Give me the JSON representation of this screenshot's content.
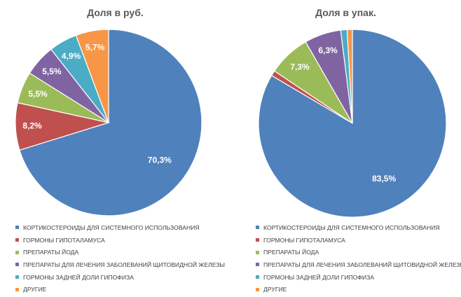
{
  "chart_data": [
    {
      "type": "pie",
      "title": "Доля в руб.",
      "categories": [
        "КОРТИКОСТЕРОИДЫ ДЛЯ СИСТЕМНОГО ИСПОЛЬЗОВАНИЯ",
        "ГОРМОНЫ ГИПОТАЛАМУСА",
        "ПРЕПАРАТЫ ЙОДА",
        "ПРЕПАРАТЫ ДЛЯ ЛЕЧЕНИЯ ЗАБОЛЕВАНИЙ ЩИТОВИДНОЙ ЖЕЛЕЗЫ",
        "ГОРМОНЫ ЗАДНЕЙ ДОЛИ ГИПОФИЗА",
        "ДРУГИЕ"
      ],
      "values": [
        70.3,
        8.2,
        5.5,
        5.5,
        4.9,
        5.7
      ],
      "data_labels": [
        "70,3%",
        "8,2%",
        "5,5%",
        "5,5%",
        "4,9%",
        "5,7%"
      ],
      "colors": [
        "#4f81bd",
        "#c0504d",
        "#9bbb59",
        "#8064a2",
        "#4bacc6",
        "#f79646"
      ],
      "legend_position": "bottom"
    },
    {
      "type": "pie",
      "title": "Доля в упак.",
      "categories": [
        "КОРТИКОСТЕРОИДЫ ДЛЯ СИСТЕМНОГО ИСПОЛЬЗОВАНИЯ",
        "ГОРМОНЫ ГИПОТАЛАМУСА",
        "ПРЕПАРАТЫ ЙОДА",
        "ПРЕПАРАТЫ ДЛЯ ЛЕЧЕНИЯ ЗАБОЛЕВАНИЙ ЩИТОВИДНОЙ ЖЕЛЕЗЫ",
        "ГОРМОНЫ ЗАДНЕЙ ДОЛИ ГИПОФИЗА",
        "ДРУГИЕ"
      ],
      "values": [
        83.5,
        0.9,
        7.3,
        6.3,
        1.1,
        0.9
      ],
      "data_labels": [
        "83,5%",
        "",
        "7,3%",
        "6,3%",
        "",
        ""
      ],
      "colors": [
        "#4f81bd",
        "#c0504d",
        "#9bbb59",
        "#8064a2",
        "#4bacc6",
        "#f79646"
      ],
      "legend_position": "bottom"
    }
  ]
}
